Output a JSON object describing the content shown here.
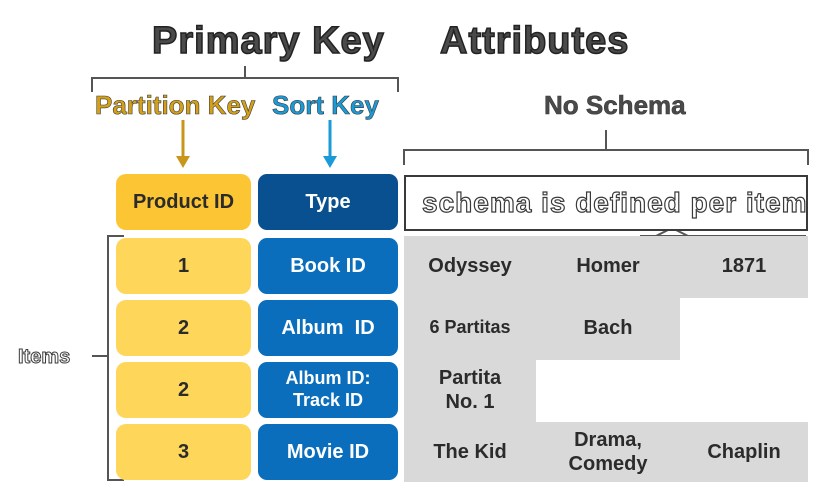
{
  "headings": {
    "primary_key": "Primary Key",
    "attributes": "Attributes",
    "partition_key": "Partition Key",
    "sort_key": "Sort Key",
    "no_schema": "No Schema",
    "schema_note": "schema is defined per item",
    "items": "Items"
  },
  "header": {
    "product_id": "Product ID",
    "type": "Type"
  },
  "rows": [
    {
      "pid": "1",
      "type": "Book ID",
      "attrs": [
        "Odyssey",
        "Homer",
        "1871"
      ]
    },
    {
      "pid": "2",
      "type": "Album  ID",
      "attrs": [
        "6 Partitas",
        "Bach"
      ]
    },
    {
      "pid": "2",
      "type": "Album ID: Track ID",
      "attrs": [
        "Partita No. 1"
      ]
    },
    {
      "pid": "3",
      "type": "Movie ID",
      "attrs": [
        "The Kid",
        "Drama, Comedy",
        "Chaplin"
      ]
    }
  ],
  "colors": {
    "partition_key": "#d4a017",
    "sort_key": "#1a9ad6",
    "yellow_cell": "#fdd65a",
    "blue_cell": "#0a6ebd",
    "grey_cell": "#d9d9d9"
  }
}
